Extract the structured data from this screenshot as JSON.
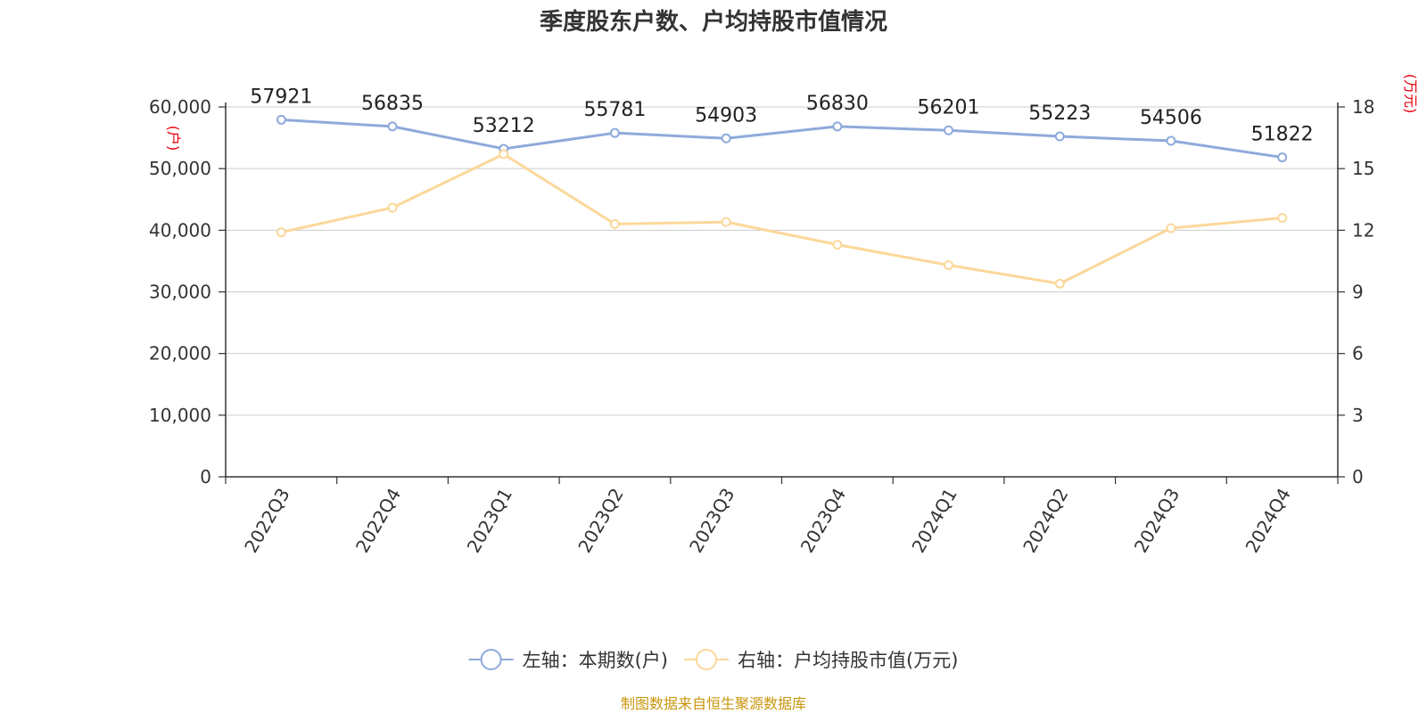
{
  "chart_data": {
    "type": "line",
    "title": "季度股东户数、户均持股市值情况",
    "categories": [
      "2022Q3",
      "2022Q4",
      "2023Q1",
      "2023Q2",
      "2023Q3",
      "2023Q4",
      "2024Q1",
      "2024Q2",
      "2024Q3",
      "2024Q4"
    ],
    "left_axis": {
      "unit": "(户)",
      "range": [
        0,
        60000
      ],
      "ticks": [
        "0",
        "10,000",
        "20,000",
        "30,000",
        "40,000",
        "50,000",
        "60,000"
      ],
      "tick_values": [
        0,
        10000,
        20000,
        30000,
        40000,
        50000,
        60000
      ]
    },
    "right_axis": {
      "unit": "(万元)",
      "range": [
        0,
        18
      ],
      "ticks": [
        "0",
        "3",
        "6",
        "9",
        "12",
        "15",
        "18"
      ],
      "tick_values": [
        0,
        3,
        6,
        9,
        12,
        15,
        18
      ]
    },
    "series": [
      {
        "name": "左轴：本期数(户)",
        "axis": "left",
        "color": "#8eaadb",
        "values": [
          57921,
          56835,
          53212,
          55781,
          54903,
          56830,
          56201,
          55223,
          54506,
          51822
        ],
        "labels": [
          "57921",
          "56835",
          "53212",
          "55781",
          "54903",
          "56830",
          "56201",
          "55223",
          "54506",
          "51822"
        ]
      },
      {
        "name": "右轴：户均持股市值(万元)",
        "axis": "right",
        "color": "#fbd89a",
        "values": [
          11.9,
          13.1,
          15.7,
          12.3,
          12.4,
          11.3,
          10.3,
          9.4,
          12.1,
          12.6
        ]
      }
    ],
    "grid": true,
    "legend_position": "bottom-center"
  },
  "footer": {
    "source": "制图数据来自恒生聚源数据库"
  }
}
